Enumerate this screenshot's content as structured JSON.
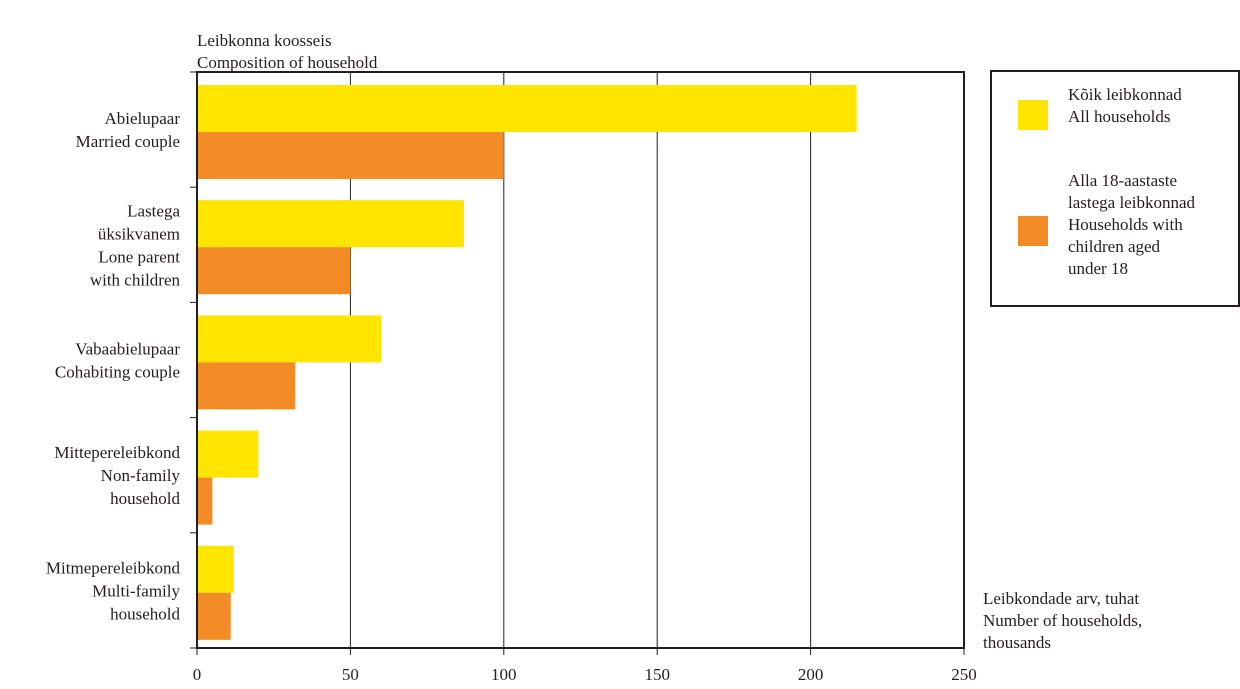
{
  "chart_data": {
    "type": "bar",
    "orientation": "horizontal",
    "title": [
      "Leibkonna koosseis",
      "Composition of household"
    ],
    "xlabel": [
      "Leibkondade arv, tuhat",
      "Number of households,",
      "thousands"
    ],
    "categories": [
      [
        "Abielupaar",
        "Married couple"
      ],
      [
        "Lastega",
        "üksikvanem",
        "Lone parent",
        "with children"
      ],
      [
        "Vabaabielupaar",
        "Cohabiting couple"
      ],
      [
        "Mittepereleibkond",
        "Non-family",
        "household"
      ],
      [
        "Mitmepereleibkond",
        "Multi-family",
        "household"
      ]
    ],
    "series": [
      {
        "name": [
          "Kõik leibkonnad",
          "All households"
        ],
        "color": "#ffe500",
        "values": [
          215,
          87,
          60,
          20,
          12
        ]
      },
      {
        "name": [
          "Alla 18-aastaste",
          "lastega leibkonnad",
          "Households with",
          "children aged",
          "under 18"
        ],
        "color": "#f28a25",
        "values": [
          100,
          50,
          32,
          5,
          11
        ]
      }
    ],
    "xlim": [
      0,
      250
    ],
    "xticks": [
      0,
      50,
      100,
      150,
      200,
      250
    ],
    "grid": true,
    "legend_position": "right"
  }
}
